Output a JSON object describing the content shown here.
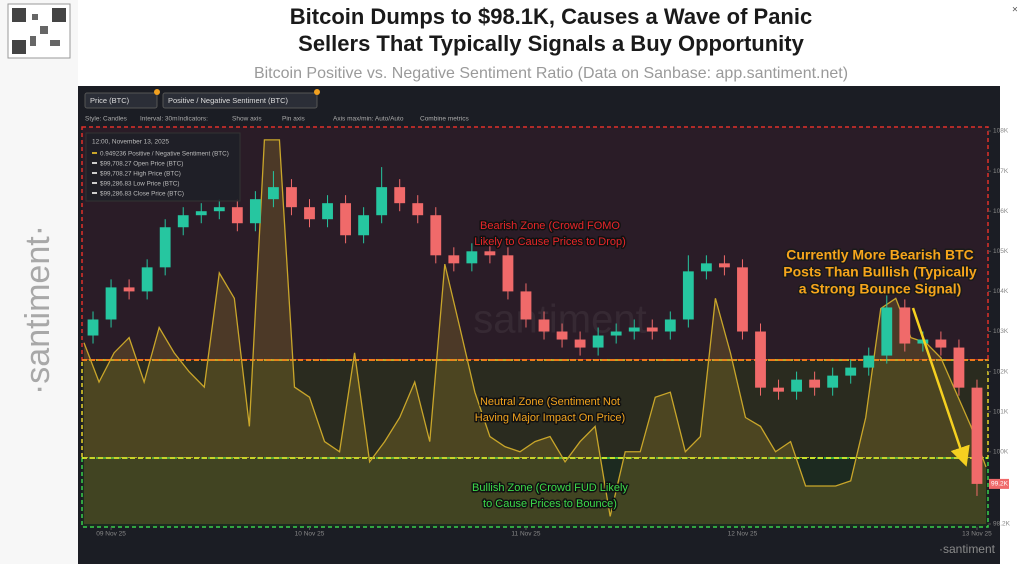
{
  "header": {
    "title_lines": [
      "Bitcoin Dumps to $98.1K, Causes a Wave of Panic",
      "Sellers That Typically Signals a Buy Opportunity"
    ],
    "subtitle": "Bitcoin Positive vs. Negative Sentiment Ratio (Data on Sanbase: app.santiment.net)"
  },
  "brand": {
    "side": "·santiment·",
    "watermark": "santiment",
    "corner": "·santiment"
  },
  "toolbar": {
    "items": [
      "Style: Candles",
      "Interval: 30m",
      "Indicators:",
      "Show axis",
      "Pin axis",
      "Axis max/min: Auto/Auto",
      "Combine metrics"
    ]
  },
  "tooltip": {
    "time": "12:00, November 13, 2025",
    "rows": [
      "0.949236 Positive / Negative Sentiment (BTC)",
      "$99,708.27 Open Price (BTC)",
      "$99,708.27 High Price (BTC)",
      "$99,286.83 Low Price (BTC)",
      "$99,286.83 Close Price (BTC)"
    ]
  },
  "annotations": {
    "bearish": [
      "Bearish Zone (Crowd FOMO",
      "Likely to Cause Prices to Drop)"
    ],
    "neutral": [
      "Neutral Zone (Sentiment Not",
      "Having Major Impact On Price)"
    ],
    "bullish": [
      "Bullish Zone (Crowd FUD Likely",
      "to Cause Prices to Bounce)"
    ],
    "callout": [
      "Currently More Bearish BTC",
      "Posts Than Bullish (Typically",
      "a Strong Bounce Signal)"
    ]
  },
  "chart_data": {
    "type": "candlestick",
    "name": "Price (BTC)",
    "up_color": "#26c6a0",
    "down_color": "#f06a6a",
    "ylim": [
      98200,
      108000
    ],
    "yticks": [
      {
        "value": 98200,
        "label": "98.2K"
      },
      {
        "value": 100000,
        "label": "100K"
      },
      {
        "value": 101000,
        "label": "101K"
      },
      {
        "value": 102000,
        "label": "102K"
      },
      {
        "value": 103000,
        "label": "103K"
      },
      {
        "value": 104000,
        "label": "104K"
      },
      {
        "value": 105000,
        "label": "105K"
      },
      {
        "value": 106000,
        "label": "106K"
      },
      {
        "value": 107000,
        "label": "107K"
      },
      {
        "value": 108000,
        "label": "108K"
      }
    ],
    "current": {
      "value": 99200,
      "label": "99.2K"
    },
    "xticks": [
      {
        "value": 1,
        "label": "09 Nov 25"
      },
      {
        "value": 12,
        "label": "10 Nov 25"
      },
      {
        "value": 24,
        "label": "11 Nov 25"
      },
      {
        "value": 36,
        "label": "12 Nov 25"
      },
      {
        "value": 49,
        "label": "13 Nov 25"
      }
    ],
    "open": [
      102900,
      103300,
      104100,
      104000,
      104600,
      105600,
      105900,
      106000,
      106100,
      105700,
      106300,
      106600,
      106100,
      105800,
      106200,
      105400,
      105900,
      106600,
      106200,
      105900,
      104900,
      104700,
      105000,
      104900,
      104000,
      103300,
      103000,
      102800,
      102600,
      102900,
      103000,
      103100,
      103000,
      103300,
      104500,
      104700,
      104600,
      103000,
      101600,
      101500,
      101800,
      101600,
      101900,
      102100,
      102400,
      103600,
      102700,
      102800,
      102600,
      101600
    ],
    "high": [
      103500,
      104300,
      104300,
      104800,
      105800,
      106100,
      106200,
      106300,
      106300,
      106500,
      107000,
      106800,
      106300,
      106400,
      106400,
      106100,
      107100,
      106800,
      106400,
      106100,
      105100,
      105200,
      105200,
      105100,
      104200,
      103500,
      103200,
      103000,
      103100,
      103200,
      103300,
      103300,
      103500,
      104900,
      104900,
      104900,
      104800,
      103200,
      101800,
      102000,
      102000,
      102100,
      102300,
      102600,
      103900,
      103800,
      103000,
      103000,
      102800,
      101800
    ],
    "low": [
      102700,
      103100,
      103800,
      103800,
      104400,
      105400,
      105700,
      105800,
      105500,
      105500,
      106100,
      105900,
      105600,
      105600,
      105200,
      105200,
      105700,
      106000,
      105700,
      104700,
      104500,
      104500,
      104700,
      103800,
      103100,
      102800,
      102600,
      102400,
      102400,
      102700,
      102800,
      102800,
      102800,
      103100,
      104300,
      104400,
      102800,
      101400,
      101300,
      101300,
      101400,
      101400,
      101700,
      101900,
      102200,
      102500,
      102500,
      102400,
      101400,
      98900
    ],
    "close": [
      103300,
      104100,
      104000,
      104600,
      105600,
      105900,
      106000,
      106100,
      105700,
      106300,
      106600,
      106100,
      105800,
      106200,
      105400,
      105900,
      106600,
      106200,
      105900,
      104900,
      104700,
      105000,
      104900,
      104000,
      103300,
      103000,
      102800,
      102600,
      102900,
      103000,
      103100,
      103000,
      103300,
      104500,
      104700,
      104600,
      103000,
      101600,
      101500,
      101800,
      101600,
      101900,
      102100,
      102400,
      103600,
      102700,
      102800,
      102600,
      101600,
      99200
    ],
    "y2lim": [
      0.5,
      3.6
    ],
    "overlay": {
      "type": "line",
      "name": "Positive / Negative Sentiment (BTC)",
      "color": "#c9a62a",
      "axis": "y2",
      "values": [
        1.93,
        1.62,
        1.85,
        1.97,
        1.62,
        2.05,
        1.85,
        1.7,
        1.58,
        2.48,
        2.28,
        1.27,
        3.53,
        3.53,
        1.58,
        1.5,
        1.15,
        1.07,
        1.85,
        0.99,
        1.15,
        1.34,
        1.62,
        1.15,
        2.55,
        2.05,
        1.54,
        1.19,
        1.11,
        1.07,
        1.15,
        1.19,
        0.99,
        1.15,
        1.27,
        0.56,
        1.07,
        1.07,
        1.5,
        1.54,
        1.07,
        1.19,
        2.28,
        1.85,
        1.34,
        1.27,
        1.07,
        1.15,
        0.8,
        0.8,
        0.8,
        0.84,
        1.34,
        2.2,
        2.28,
        1.97,
        1.93,
        1.81,
        1.54,
        1.27,
        0.95
      ]
    }
  }
}
